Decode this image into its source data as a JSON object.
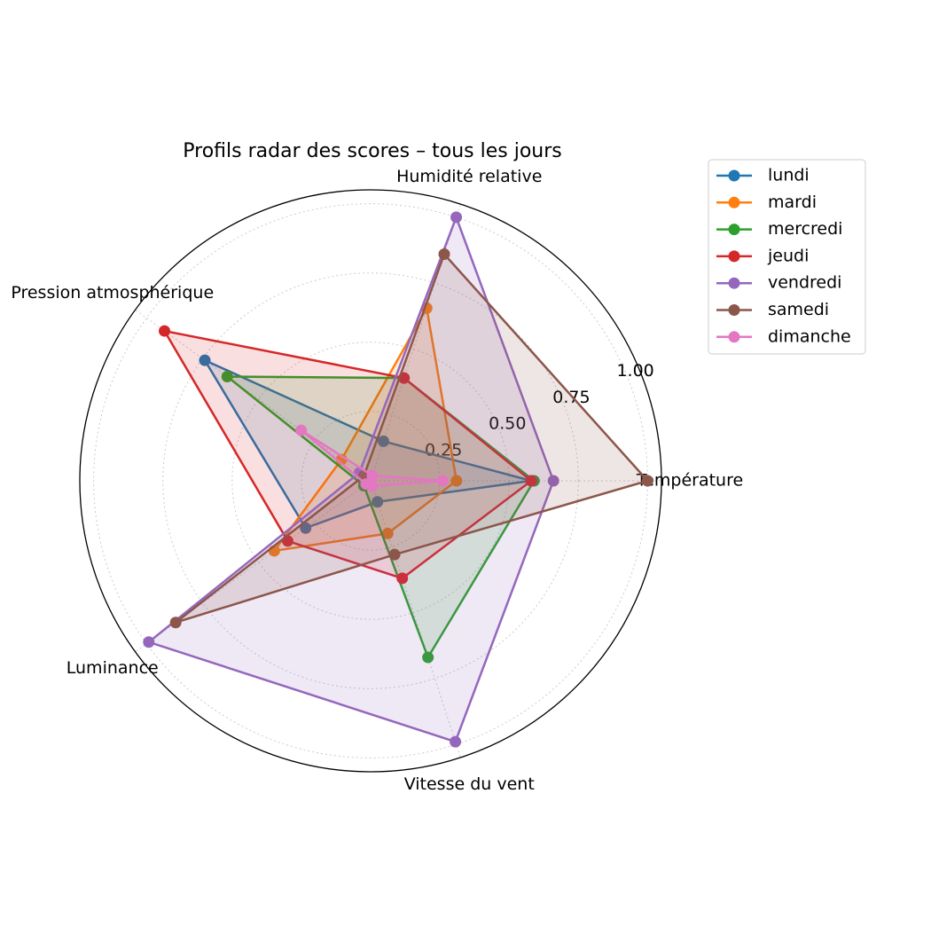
{
  "chart_data": {
    "type": "radar",
    "title": "Profils radar des scores – tous les jours",
    "categories": [
      "Température",
      "Humidité relative",
      "Pression atmosphérique",
      "Luminance",
      "Vitesse du vent"
    ],
    "ylim": [
      0,
      1.05
    ],
    "yticks": [
      {
        "value": 0.25,
        "label": "0.25"
      },
      {
        "value": 0.5,
        "label": "0.50"
      },
      {
        "value": 0.75,
        "label": "0.75"
      },
      {
        "value": 1.0,
        "label": "1.00"
      }
    ],
    "grid": true,
    "legend": "upper right",
    "series": [
      {
        "name": "lundi",
        "color": "#1f77b4",
        "values": [
          0.58,
          0.15,
          0.74,
          0.29,
          0.08
        ]
      },
      {
        "name": "mardi",
        "color": "#ff7f0e",
        "values": [
          0.31,
          0.655,
          0.13,
          0.43,
          0.2
        ]
      },
      {
        "name": "mercredi",
        "color": "#2ca02c",
        "values": [
          0.59,
          0.39,
          0.64,
          0.03,
          0.67
        ]
      },
      {
        "name": "jeudi",
        "color": "#d62728",
        "values": [
          0.58,
          0.39,
          0.92,
          0.37,
          0.37
        ]
      },
      {
        "name": "vendredi",
        "color": "#9467bd",
        "values": [
          0.66,
          1.0,
          0.05,
          0.99,
          0.99
        ]
      },
      {
        "name": "samedi",
        "color": "#8c564b",
        "values": [
          1.0,
          0.86,
          0.03,
          0.87,
          0.28
        ]
      },
      {
        "name": "dimanche",
        "color": "#e377c2",
        "values": [
          0.26,
          0.02,
          0.31,
          0.02,
          0.02
        ]
      }
    ]
  }
}
